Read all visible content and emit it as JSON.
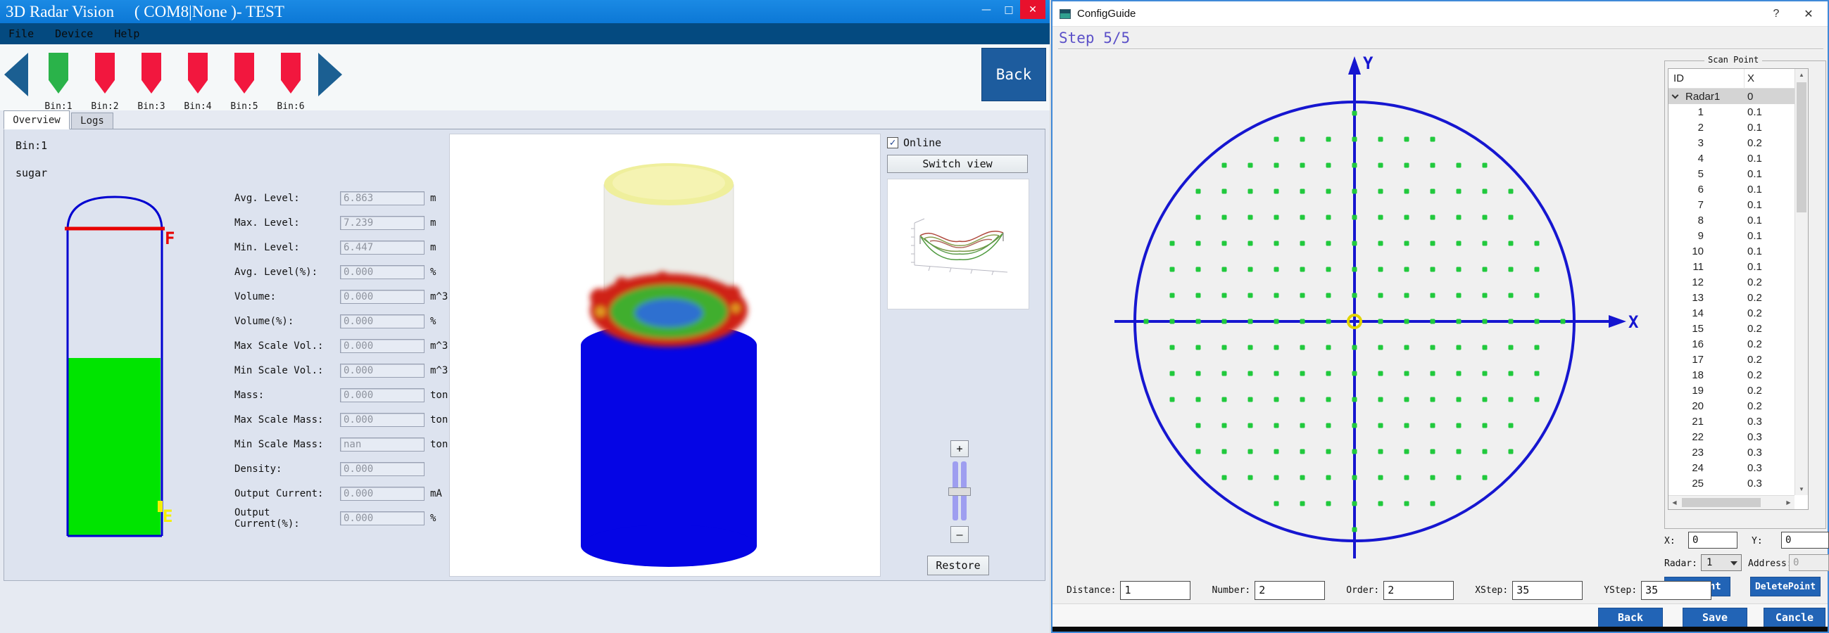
{
  "colors": {
    "title_bar_blue": "#0c78d6",
    "menu_bar_blue": "#044a80",
    "button_blue": "#2264b6",
    "bin_green": "#2ab34a",
    "bin_red": "#f2173e",
    "tank_outline_blue": "#0000d0",
    "tank_fill_green": "#00e400",
    "tank_full_line_red": "#e80000",
    "cylinder_blue": "#0505e5",
    "axis_blue": "#1616d0",
    "dot_green": "#21c93d",
    "center_marker_yellow": "#e0d400",
    "step_text_purple": "#5b50c8"
  },
  "left_window": {
    "title": "3D Radar Vision     ( COM8|None )- TEST",
    "controls": {
      "minimize": "—",
      "maximize": "□",
      "close": "✕"
    },
    "menu": [
      "File",
      "Device",
      "Help"
    ],
    "bins": [
      {
        "label": "Bin:1",
        "color": "green"
      },
      {
        "label": "Bin:2",
        "color": "red"
      },
      {
        "label": "Bin:3",
        "color": "red"
      },
      {
        "label": "Bin:4",
        "color": "red"
      },
      {
        "label": "Bin:5",
        "color": "red"
      },
      {
        "label": "Bin:6",
        "color": "red"
      }
    ],
    "back_label": "Back",
    "tabs": {
      "overview": "Overview",
      "logs": "Logs"
    },
    "overview": {
      "bin_name": "Bin:1",
      "material": "sugar",
      "tank": {
        "full_label": "F",
        "empty_label": "E"
      },
      "fields": [
        {
          "label": "Avg. Level:",
          "value": "6.863",
          "unit": "m"
        },
        {
          "label": "Max. Level:",
          "value": "7.239",
          "unit": "m"
        },
        {
          "label": "Min. Level:",
          "value": "6.447",
          "unit": "m"
        },
        {
          "label": "Avg. Level(%):",
          "value": "0.000",
          "unit": "%"
        },
        {
          "label": "Volume:",
          "value": "0.000",
          "unit": "m^3"
        },
        {
          "label": "Volume(%):",
          "value": "0.000",
          "unit": "%"
        },
        {
          "label": "Max Scale Vol.:",
          "value": "0.000",
          "unit": "m^3"
        },
        {
          "label": "Min Scale Vol.:",
          "value": "0.000",
          "unit": "m^3"
        },
        {
          "label": "Mass:",
          "value": "0.000",
          "unit": "ton"
        },
        {
          "label": "Max Scale Mass:",
          "value": "0.000",
          "unit": "ton"
        },
        {
          "label": "Min Scale Mass:",
          "value": "nan",
          "unit": "ton"
        },
        {
          "label": "Density:",
          "value": "0.000",
          "unit": ""
        },
        {
          "label": "Output Current:",
          "value": "0.000",
          "unit": "mA"
        },
        {
          "label": "Output Current(%):",
          "value": "0.000",
          "unit": "%"
        }
      ],
      "online_label": "Online",
      "online_checked": "✓",
      "switch_view_label": "Switch view",
      "zoom_in": "+",
      "zoom_out": "–",
      "restore_label": "Restore"
    }
  },
  "right_window": {
    "title": "ConfigGuide",
    "help_glyph": "?",
    "close_glyph": "✕",
    "step_label": "Step 5/5",
    "plot": {
      "x_axis_label": "X",
      "y_axis_label": "Y",
      "dot_grid": {
        "spacing": 37,
        "steps": 8,
        "max_radius": 297,
        "dot_size": 7,
        "color": "#21c93d"
      }
    },
    "scan_point": {
      "group_label": "Scan Point",
      "columns": [
        "ID",
        "X"
      ],
      "parent_row": {
        "id": "Radar1",
        "x": "0"
      },
      "rows": [
        {
          "id": "1",
          "x": "0.1"
        },
        {
          "id": "2",
          "x": "0.1"
        },
        {
          "id": "3",
          "x": "0.2"
        },
        {
          "id": "4",
          "x": "0.1"
        },
        {
          "id": "5",
          "x": "0.1"
        },
        {
          "id": "6",
          "x": "0.1"
        },
        {
          "id": "7",
          "x": "0.1"
        },
        {
          "id": "8",
          "x": "0.1"
        },
        {
          "id": "9",
          "x": "0.1"
        },
        {
          "id": "10",
          "x": "0.1"
        },
        {
          "id": "11",
          "x": "0.1"
        },
        {
          "id": "12",
          "x": "0.2"
        },
        {
          "id": "13",
          "x": "0.2"
        },
        {
          "id": "14",
          "x": "0.2"
        },
        {
          "id": "15",
          "x": "0.2"
        },
        {
          "id": "16",
          "x": "0.2"
        },
        {
          "id": "17",
          "x": "0.2"
        },
        {
          "id": "18",
          "x": "0.2"
        },
        {
          "id": "19",
          "x": "0.2"
        },
        {
          "id": "20",
          "x": "0.2"
        },
        {
          "id": "21",
          "x": "0.3"
        },
        {
          "id": "22",
          "x": "0.3"
        },
        {
          "id": "23",
          "x": "0.3"
        },
        {
          "id": "24",
          "x": "0.3"
        },
        {
          "id": "25",
          "x": "0.3"
        }
      ]
    },
    "coords": {
      "x_label": "X:",
      "x_value": "0",
      "y_label": "Y:",
      "y_value": "0"
    },
    "radar_row": {
      "radar_label": "Radar:",
      "radar_value": "1",
      "address_label": "Address:",
      "address_value": "0"
    },
    "actions": {
      "add": "AddPoint",
      "delete": "DeletePoint"
    },
    "params": [
      {
        "label": "Distance:",
        "value": "1"
      },
      {
        "label": "Number:",
        "value": "2"
      },
      {
        "label": "Order:",
        "value": "2"
      },
      {
        "label": "XStep:",
        "value": "35"
      },
      {
        "label": "YStep:",
        "value": "35"
      }
    ],
    "footer": {
      "back": "Back",
      "save": "Save",
      "cancel": "Cancle"
    }
  }
}
